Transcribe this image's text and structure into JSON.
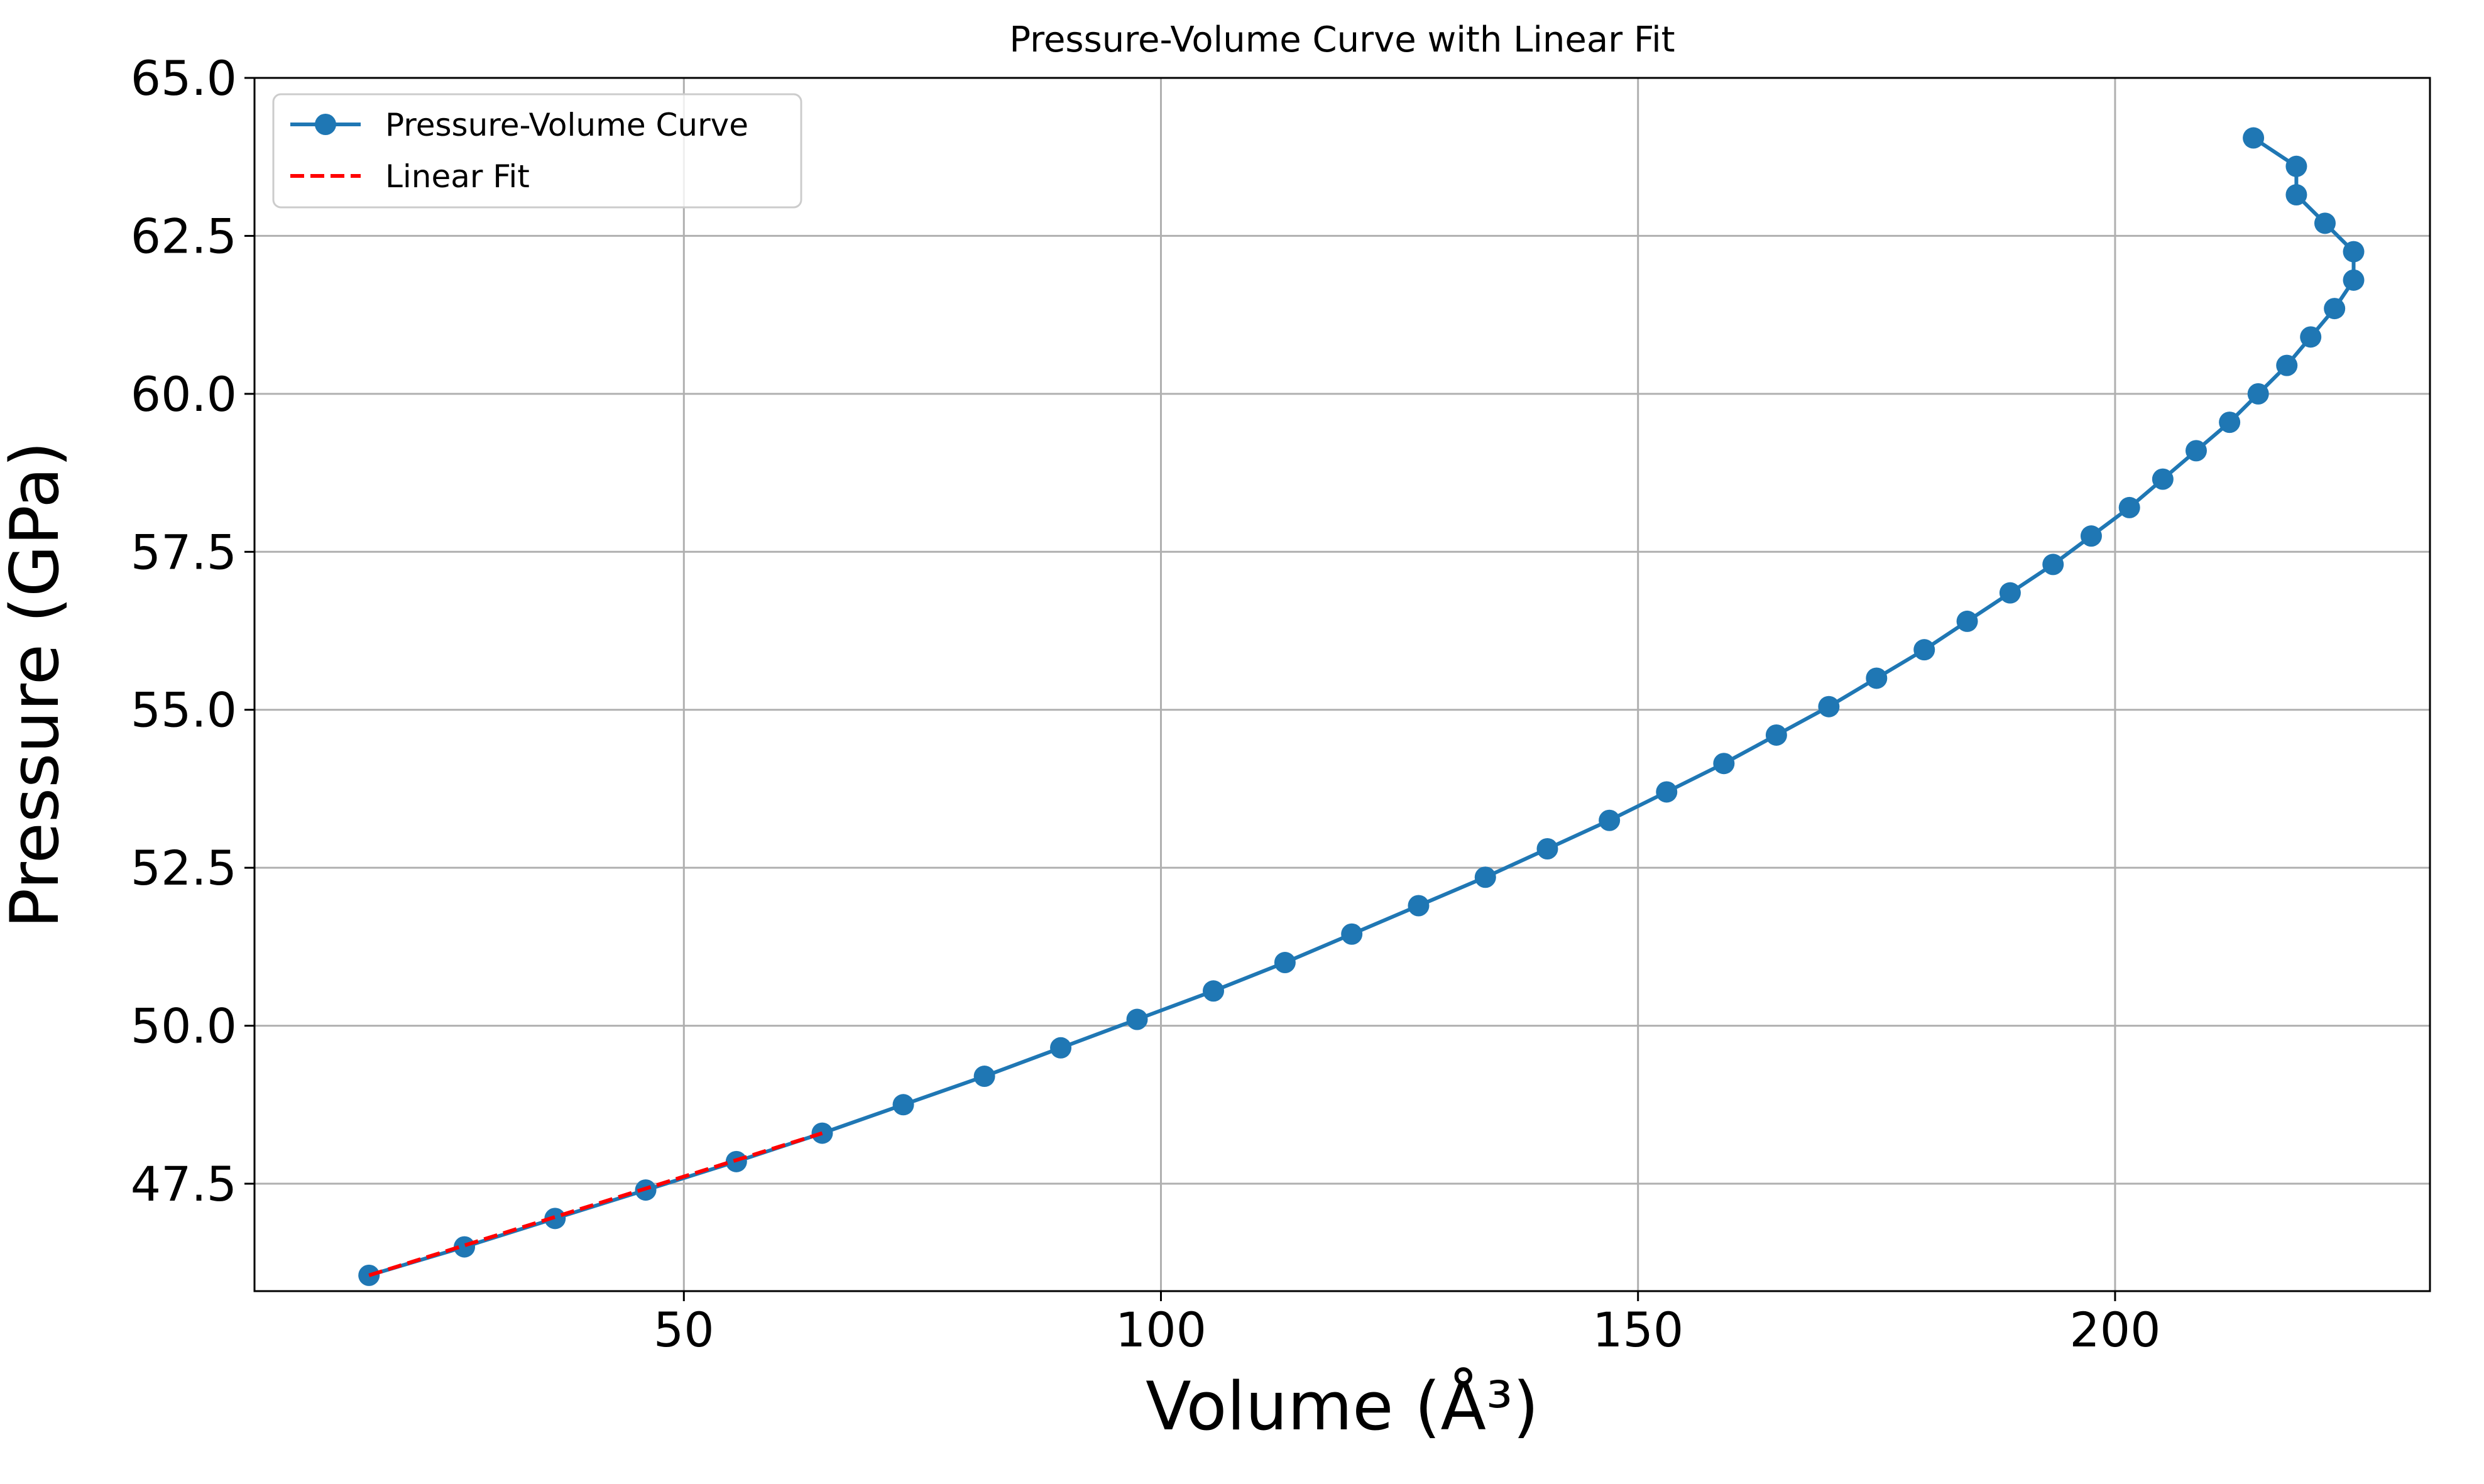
{
  "chart_data": {
    "type": "line",
    "title": "Pressure-Volume Curve with Linear Fit",
    "xlabel": "Volume (Å³)",
    "ylabel": "Pressure (GPa)",
    "xlim": [
      5.0,
      233.0
    ],
    "ylim": [
      45.8,
      65.0
    ],
    "xticks": [
      50,
      100,
      150,
      200
    ],
    "yticks": [
      47.5,
      50.0,
      52.5,
      55.0,
      57.5,
      60.0,
      62.5,
      65.0
    ],
    "xtick_labels": [
      "50",
      "100",
      "150",
      "200"
    ],
    "ytick_labels": [
      "47.5",
      "50.0",
      "52.5",
      "55.0",
      "57.5",
      "60.0",
      "62.5",
      "65.0"
    ],
    "grid": true,
    "legend_position": "upper-left",
    "series": [
      {
        "name": "Pressure-Volume Curve",
        "color": "#1f77b4",
        "style": "solid",
        "marker": "circle",
        "x": [
          17.0,
          27.0,
          36.5,
          46.0,
          55.5,
          64.5,
          73.0,
          81.5,
          89.5,
          97.5,
          105.5,
          113.0,
          120.0,
          127.0,
          134.0,
          140.5,
          147.0,
          153.0,
          159.0,
          164.5,
          170.0,
          175.0,
          180.0,
          184.5,
          189.0,
          193.5,
          197.5,
          201.5,
          205.0,
          208.5,
          212.0,
          215.0,
          218.0,
          220.5,
          223.0,
          225.0,
          225.0,
          222.0,
          219.0,
          219.0,
          214.5
        ],
        "y": [
          46.05,
          46.5,
          46.95,
          47.4,
          47.85,
          48.3,
          48.75,
          49.2,
          49.65,
          50.1,
          50.55,
          51.0,
          51.45,
          51.9,
          52.35,
          52.8,
          53.25,
          53.7,
          54.15,
          54.6,
          55.05,
          55.5,
          55.95,
          56.4,
          56.85,
          57.3,
          57.75,
          58.2,
          58.65,
          59.1,
          59.55,
          60.0,
          60.45,
          60.9,
          61.35,
          61.8,
          62.25,
          62.7,
          63.15,
          63.6,
          64.05
        ]
      },
      {
        "name": "Linear Fit",
        "color": "#ff0000",
        "style": "dashed",
        "marker": "none",
        "x": [
          17.0,
          64.5
        ],
        "y": [
          46.05,
          48.3
        ]
      }
    ]
  }
}
